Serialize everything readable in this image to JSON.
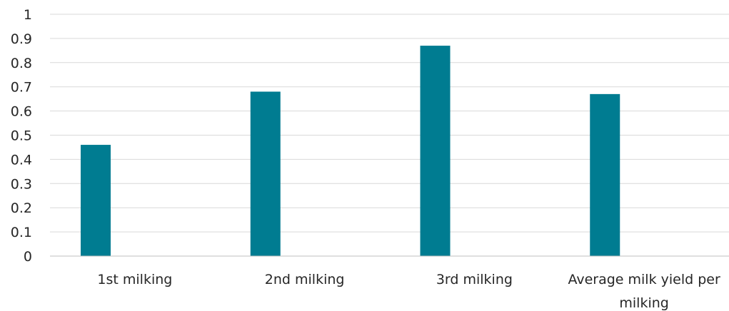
{
  "chart_data": {
    "type": "bar",
    "title": "",
    "xlabel": "",
    "ylabel": "",
    "categories": [
      "1st milking",
      "2nd milking",
      "3rd milking",
      "Average milk yield per milking"
    ],
    "category_lines": [
      [
        "1st milking"
      ],
      [
        "2nd milking"
      ],
      [
        "3rd milking"
      ],
      [
        "Average milk yield per",
        "milking"
      ]
    ],
    "series": [
      {
        "values": [
          0.46,
          0.68,
          0.87,
          0.67
        ]
      }
    ],
    "ylim": [
      0,
      1
    ],
    "yticks": [
      "0",
      "0.1",
      "0.2",
      "0.3",
      "0.4",
      "0.5",
      "0.6",
      "0.7",
      "0.8",
      "0.9",
      "1"
    ],
    "grid": true,
    "legend": "none",
    "bar_color": "#007c91"
  }
}
